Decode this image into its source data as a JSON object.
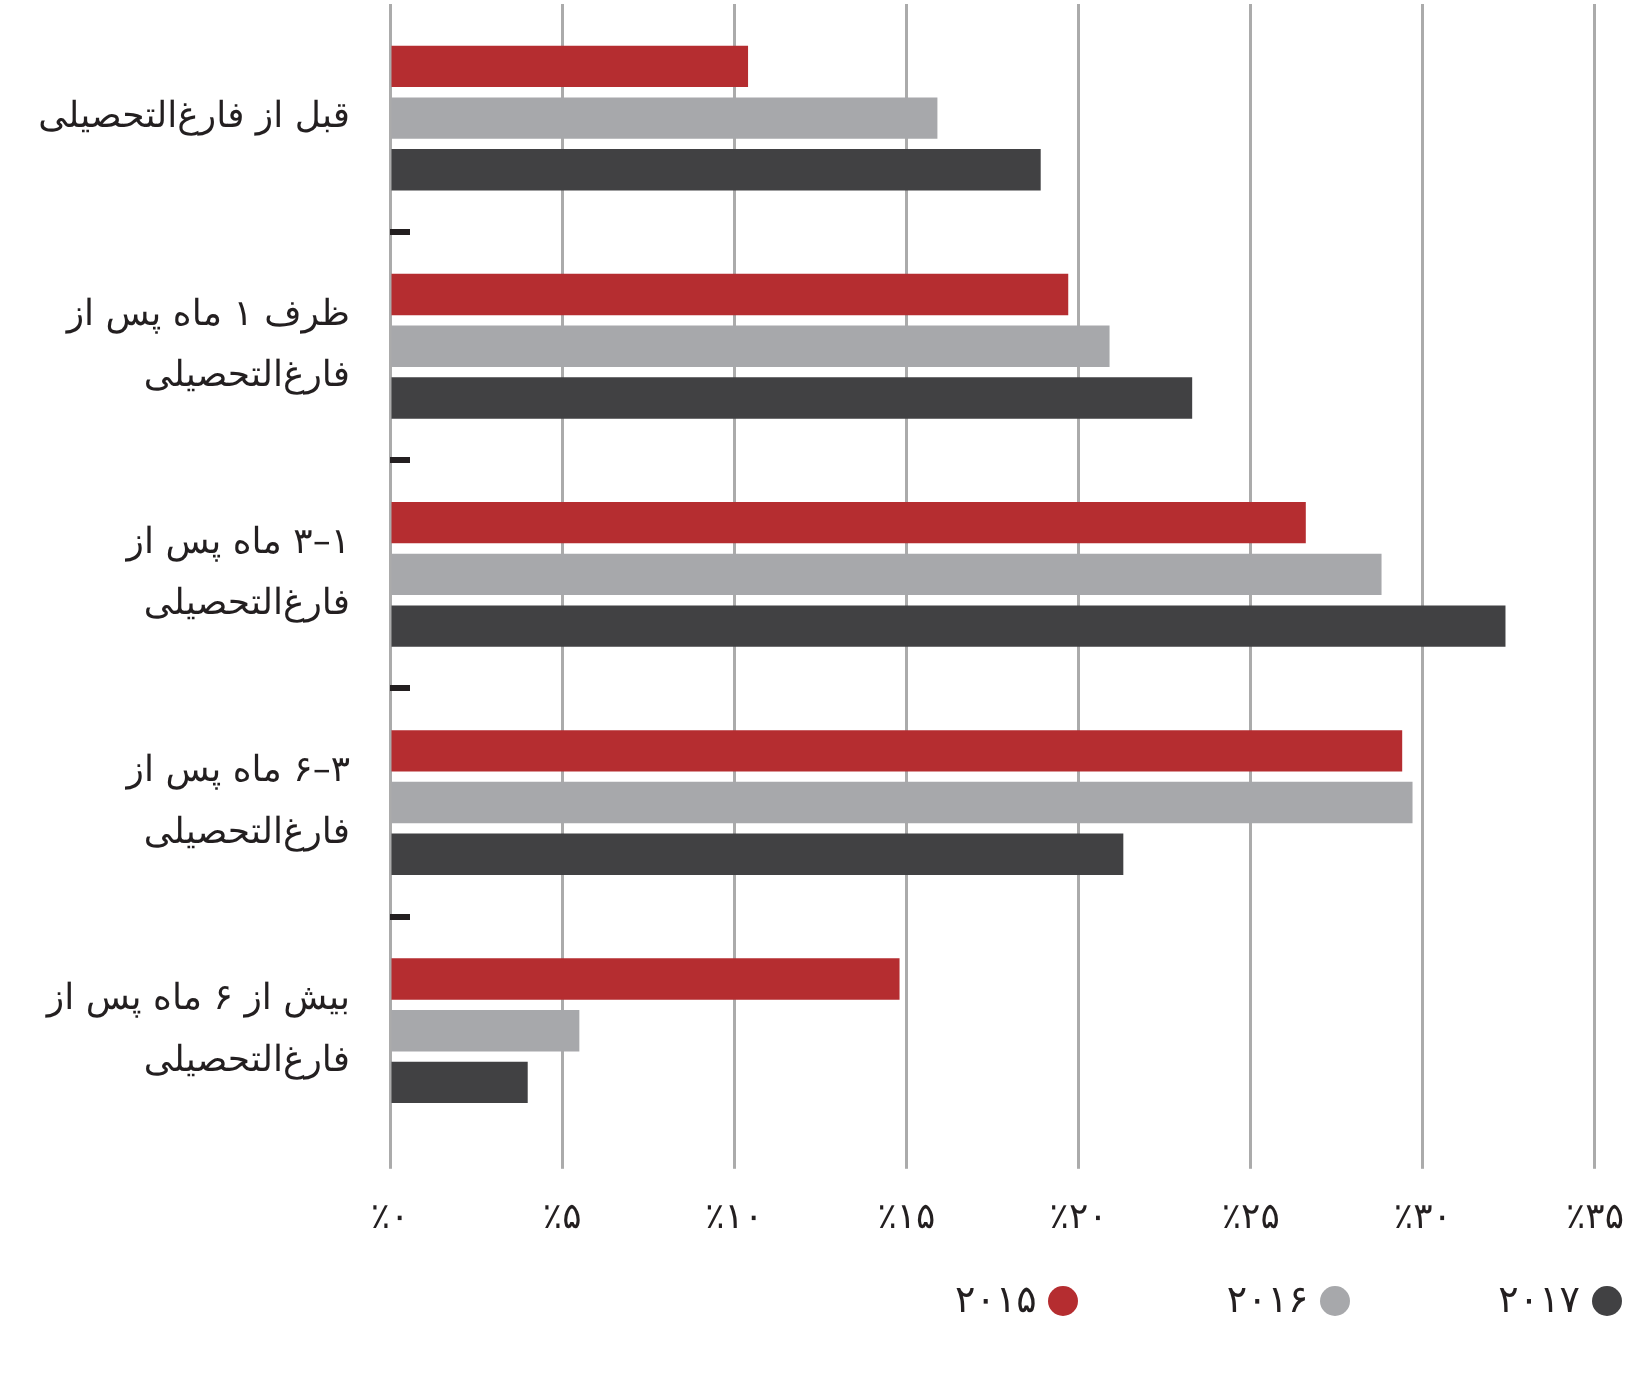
{
  "chart_data": {
    "type": "bar",
    "orientation": "horizontal",
    "categories": [
      "قبل از فارغ‌التحصیلی",
      "ظرف ۱ ماه پس از فارغ‌التحصیلی",
      "۱–۳ ماه پس از فارغ‌التحصیلی",
      "۳–۶ ماه پس از فارغ‌التحصیلی",
      "بیش از ۶ ماه پس از فارغ‌التحصیلی"
    ],
    "series": [
      {
        "name": "۲۰۱۵",
        "color": "#b52d30",
        "values": [
          10.4,
          19.7,
          26.6,
          29.4,
          14.8
        ]
      },
      {
        "name": "۲۰۱۶",
        "color": "#a7a8ab",
        "values": [
          15.9,
          20.9,
          28.8,
          29.7,
          5.5
        ]
      },
      {
        "name": "۲۰۱۷",
        "color": "#414143",
        "values": [
          18.9,
          23.3,
          32.4,
          21.3,
          4.0
        ]
      }
    ],
    "xlim": [
      0,
      35
    ],
    "xticks": [
      {
        "value": 0,
        "label": "٪۰"
      },
      {
        "value": 5,
        "label": "٪۵"
      },
      {
        "value": 10,
        "label": "٪۱۰"
      },
      {
        "value": 15,
        "label": "٪۱۵"
      },
      {
        "value": 20,
        "label": "٪۲۰"
      },
      {
        "value": 25,
        "label": "٪۲۵"
      },
      {
        "value": 30,
        "label": "٪۳۰"
      },
      {
        "value": 35,
        "label": "٪۳۵"
      }
    ],
    "grid": "x",
    "legend": "bottom right"
  }
}
